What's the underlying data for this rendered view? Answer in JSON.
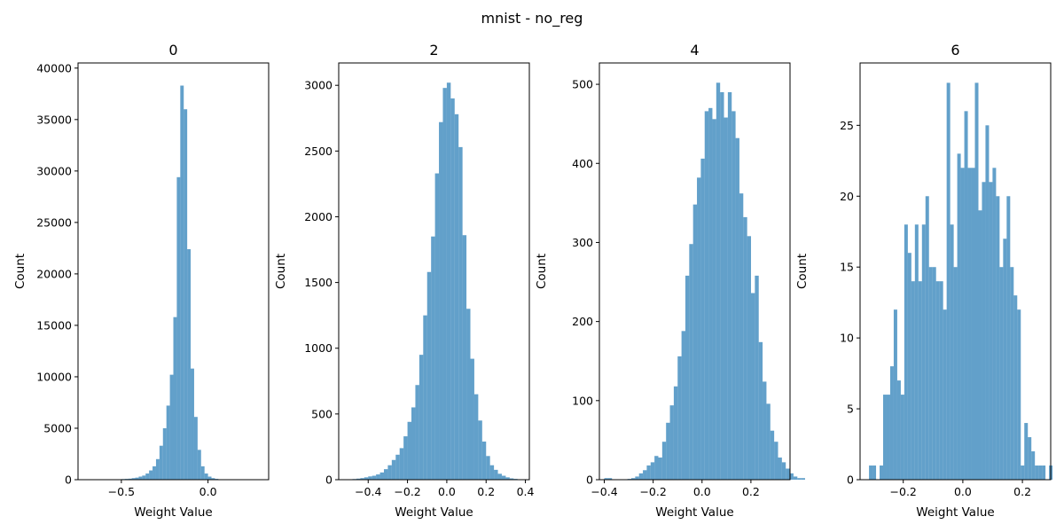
{
  "figure": {
    "title": "mnist - no_reg"
  },
  "style": {
    "bar_color": "#1f77b4",
    "bar_opacity": 0.7
  },
  "chart_data": [
    {
      "type": "bar",
      "title": "0",
      "xlabel": "Weight Value",
      "ylabel": "Count",
      "xlim": [
        -0.75,
        0.35
      ],
      "ylim": [
        0,
        40500
      ],
      "xticks": [
        -0.5,
        0.0
      ],
      "xtick_labels": [
        "−0.5",
        "0.0"
      ],
      "yticks": [
        0,
        5000,
        10000,
        15000,
        20000,
        25000,
        30000,
        35000,
        40000
      ],
      "ytick_labels": [
        "0",
        "5000",
        "10000",
        "15000",
        "20000",
        "25000",
        "30000",
        "35000",
        "40000"
      ],
      "bin_start": -0.7,
      "bin_width": 0.02,
      "values": [
        10,
        10,
        10,
        10,
        10,
        10,
        10,
        20,
        30,
        40,
        60,
        80,
        100,
        150,
        200,
        300,
        400,
        600,
        900,
        1300,
        2000,
        3300,
        5000,
        7200,
        10200,
        15800,
        29400,
        38300,
        36000,
        22400,
        10800,
        6100,
        2900,
        1300,
        600,
        300,
        150,
        80,
        40,
        20,
        10
      ]
    },
    {
      "type": "bar",
      "title": "2",
      "xlabel": "Weight Value",
      "ylabel": "Count",
      "xlim": [
        -0.55,
        0.42
      ],
      "ylim": [
        0,
        3170
      ],
      "xticks": [
        -0.4,
        -0.2,
        0.0,
        0.2,
        0.4
      ],
      "xtick_labels": [
        "−0.4",
        "−0.2",
        "0.0",
        "0.2",
        "0.4"
      ],
      "yticks": [
        0,
        500,
        1000,
        1500,
        2000,
        2500,
        3000
      ],
      "ytick_labels": [
        "0",
        "500",
        "1000",
        "1500",
        "2000",
        "2500",
        "3000"
      ],
      "bin_start": -0.5,
      "bin_width": 0.02,
      "values": [
        3,
        5,
        8,
        12,
        18,
        25,
        30,
        40,
        55,
        80,
        110,
        150,
        190,
        240,
        330,
        440,
        550,
        720,
        950,
        1250,
        1580,
        1850,
        2330,
        2720,
        2980,
        3020,
        2900,
        2780,
        2530,
        1860,
        1300,
        920,
        650,
        450,
        290,
        180,
        110,
        75,
        45,
        30,
        18,
        10,
        6,
        3,
        2
      ]
    },
    {
      "type": "bar",
      "title": "4",
      "xlabel": "Weight Value",
      "ylabel": "Count",
      "xlim": [
        -0.42,
        0.36
      ],
      "ylim": [
        0,
        527
      ],
      "xticks": [
        -0.4,
        -0.2,
        0.0,
        0.2
      ],
      "xtick_labels": [
        "−0.4",
        "−0.2",
        "0.0",
        "0.2"
      ],
      "yticks": [
        0,
        100,
        200,
        300,
        400,
        500
      ],
      "ytick_labels": [
        "0",
        "100",
        "200",
        "300",
        "400",
        "500"
      ],
      "bin_start": -0.4,
      "bin_width": 0.0158,
      "values": [
        2,
        2,
        0,
        0,
        0,
        0,
        1,
        2,
        4,
        8,
        12,
        18,
        22,
        30,
        28,
        48,
        72,
        94,
        118,
        156,
        188,
        258,
        298,
        348,
        382,
        406,
        466,
        470,
        456,
        502,
        490,
        458,
        490,
        466,
        432,
        362,
        332,
        308,
        236,
        258,
        174,
        124,
        96,
        62,
        48,
        28,
        22,
        14,
        8,
        4,
        2,
        2
      ]
    },
    {
      "type": "bar",
      "title": "6",
      "xlabel": "Weight Value",
      "ylabel": "Count",
      "xlim": [
        -0.345,
        0.295
      ],
      "ylim": [
        0,
        29.4
      ],
      "xticks": [
        -0.2,
        0.0,
        0.2
      ],
      "xtick_labels": [
        "−0.2",
        "0.0",
        "0.2"
      ],
      "yticks": [
        0,
        5,
        10,
        15,
        20,
        25
      ],
      "ytick_labels": [
        "0",
        "5",
        "10",
        "15",
        "20",
        "25"
      ],
      "bin_start": -0.315,
      "bin_width": 0.01185,
      "values": [
        1,
        1,
        0,
        1,
        6,
        6,
        8,
        12,
        7,
        6,
        18,
        16,
        14,
        18,
        14,
        18,
        20,
        15,
        15,
        14,
        14,
        12,
        28,
        18,
        15,
        23,
        22,
        26,
        22,
        22,
        28,
        19,
        21,
        25,
        21,
        22,
        20,
        15,
        17,
        20,
        15,
        13,
        12,
        1,
        4,
        3,
        2,
        1,
        1,
        1,
        0,
        1
      ]
    }
  ]
}
